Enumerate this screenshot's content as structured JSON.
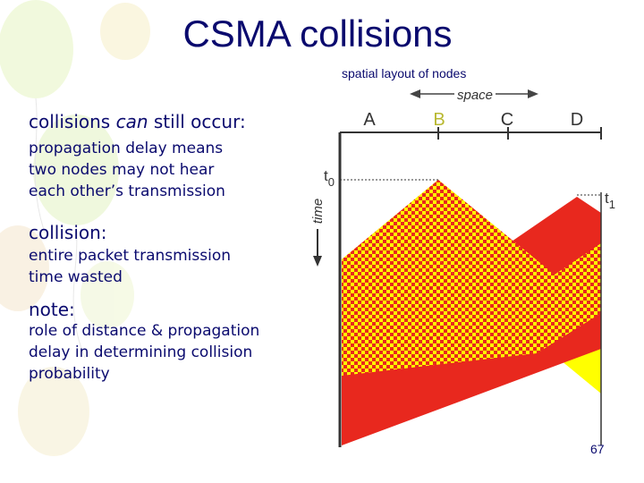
{
  "title": "CSMA collisions",
  "subtitle": "spatial layout of nodes",
  "diagram": {
    "space_label": "space",
    "time_label": "time",
    "nodes": [
      "A",
      "B",
      "C",
      "D"
    ],
    "t0_label": "t",
    "t0_sub": "0",
    "t1_label": "t",
    "t1_sub": "1",
    "colors": {
      "yellow": "#ffff00",
      "red": "#e8281e",
      "axis": "#444444"
    }
  },
  "bullets": [
    {
      "heading_pre": "collisions ",
      "heading_em": "can",
      "heading_post": " still occur:",
      "body": "propagation delay means two nodes may not hear each other’s transmission"
    },
    {
      "heading": "collision:",
      "body": "entire packet transmission time wasted"
    },
    {
      "heading": "note:",
      "body": "role of distance & propagation delay in determining collision probability"
    }
  ],
  "page_number": "67"
}
